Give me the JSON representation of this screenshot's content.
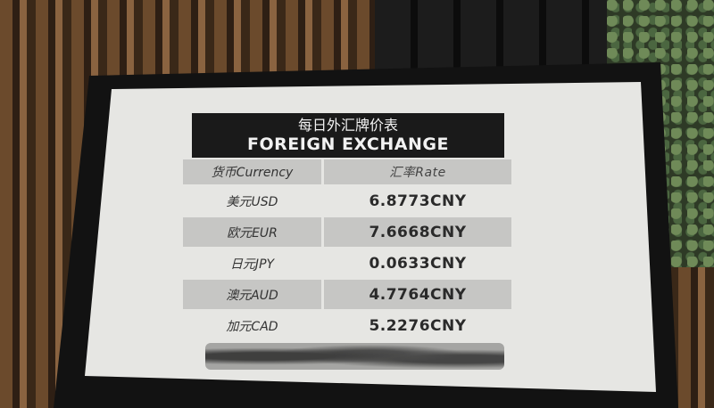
{
  "sign": {
    "title_zh": "每日外汇牌价表",
    "title_en": "FOREIGN EXCHANGE",
    "columns": [
      "货币Currency",
      "汇率Rate"
    ],
    "rows": [
      {
        "currency": "美元USD",
        "rate": "6.8773CNY"
      },
      {
        "currency": "欧元EUR",
        "rate": "7.6668CNY"
      },
      {
        "currency": "日元JPY",
        "rate": "0.0633CNY"
      },
      {
        "currency": "澳元AUD",
        "rate": "4.7764CNY"
      },
      {
        "currency": "加元CAD",
        "rate": "5.2276CNY"
      }
    ]
  }
}
